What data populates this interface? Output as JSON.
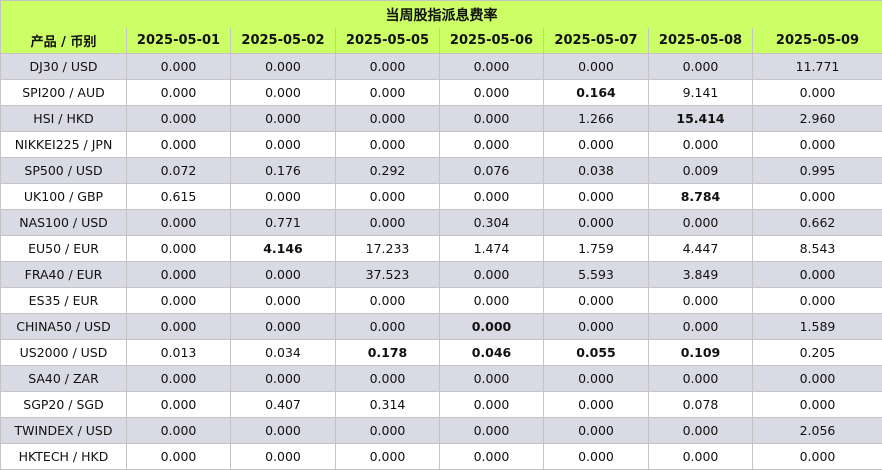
{
  "title": "当周股指派息费率",
  "header_label": "产品 / 币别",
  "dates": [
    "2025-05-01",
    "2025-05-02",
    "2025-05-05",
    "2025-05-06",
    "2025-05-07",
    "2025-05-08",
    "2025-05-09"
  ],
  "rows": [
    {
      "product": "DJ30 / USD",
      "values": [
        "0.000",
        "0.000",
        "0.000",
        "0.000",
        "0.000",
        "0.000",
        "11.771"
      ],
      "bold": []
    },
    {
      "product": "SPI200 / AUD",
      "values": [
        "0.000",
        "0.000",
        "0.000",
        "0.000",
        "0.164",
        "9.141",
        "0.000"
      ],
      "bold": [
        4
      ]
    },
    {
      "product": "HSI / HKD",
      "values": [
        "0.000",
        "0.000",
        "0.000",
        "0.000",
        "1.266",
        "15.414",
        "2.960"
      ],
      "bold": [
        5
      ]
    },
    {
      "product": "NIKKEI225 / JPN",
      "values": [
        "0.000",
        "0.000",
        "0.000",
        "0.000",
        "0.000",
        "0.000",
        "0.000"
      ],
      "bold": []
    },
    {
      "product": "SP500 / USD",
      "values": [
        "0.072",
        "0.176",
        "0.292",
        "0.076",
        "0.038",
        "0.009",
        "0.995"
      ],
      "bold": []
    },
    {
      "product": "UK100 / GBP",
      "values": [
        "0.615",
        "0.000",
        "0.000",
        "0.000",
        "0.000",
        "8.784",
        "0.000"
      ],
      "bold": [
        5
      ]
    },
    {
      "product": "NAS100 / USD",
      "values": [
        "0.000",
        "0.771",
        "0.000",
        "0.304",
        "0.000",
        "0.000",
        "0.662"
      ],
      "bold": []
    },
    {
      "product": "EU50 / EUR",
      "values": [
        "0.000",
        "4.146",
        "17.233",
        "1.474",
        "1.759",
        "4.447",
        "8.543"
      ],
      "bold": [
        1
      ]
    },
    {
      "product": "FRA40 / EUR",
      "values": [
        "0.000",
        "0.000",
        "37.523",
        "0.000",
        "5.593",
        "3.849",
        "0.000"
      ],
      "bold": []
    },
    {
      "product": "ES35 / EUR",
      "values": [
        "0.000",
        "0.000",
        "0.000",
        "0.000",
        "0.000",
        "0.000",
        "0.000"
      ],
      "bold": []
    },
    {
      "product": "CHINA50 / USD",
      "values": [
        "0.000",
        "0.000",
        "0.000",
        "0.000",
        "0.000",
        "0.000",
        "1.589"
      ],
      "bold": [
        3
      ]
    },
    {
      "product": "US2000 / USD",
      "values": [
        "0.013",
        "0.034",
        "0.178",
        "0.046",
        "0.055",
        "0.109",
        "0.205"
      ],
      "bold": [
        2,
        3,
        4,
        5
      ]
    },
    {
      "product": "SA40 / ZAR",
      "values": [
        "0.000",
        "0.000",
        "0.000",
        "0.000",
        "0.000",
        "0.000",
        "0.000"
      ],
      "bold": []
    },
    {
      "product": "SGP20 / SGD",
      "values": [
        "0.000",
        "0.407",
        "0.314",
        "0.000",
        "0.000",
        "0.078",
        "0.000"
      ],
      "bold": []
    },
    {
      "product": "TWINDEX / USD",
      "values": [
        "0.000",
        "0.000",
        "0.000",
        "0.000",
        "0.000",
        "0.000",
        "2.056"
      ],
      "bold": []
    },
    {
      "product": "HKTECH / HKD",
      "values": [
        "0.000",
        "0.000",
        "0.000",
        "0.000",
        "0.000",
        "0.000",
        "0.000"
      ],
      "bold": []
    }
  ],
  "colors": {
    "header_bg": "#ccff66",
    "stripe_bg": "#d9dae3",
    "plain_bg": "#ffffff",
    "border": "#c4c4c4"
  }
}
